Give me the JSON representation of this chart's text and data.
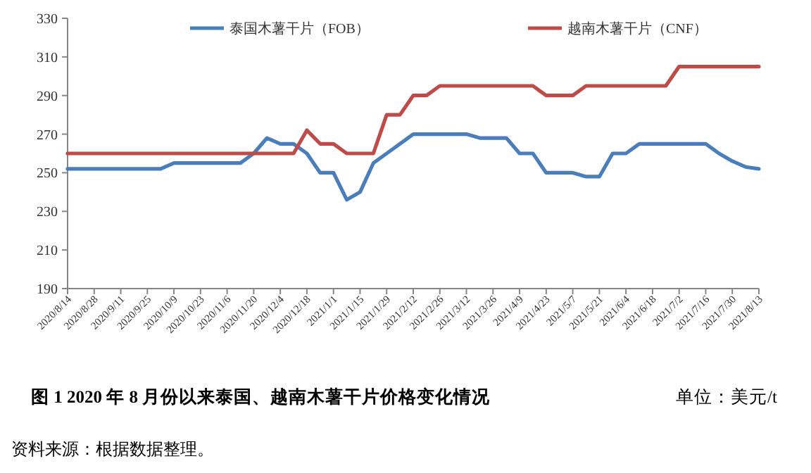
{
  "chart_data": {
    "type": "line",
    "title": "图 1 2020 年 8 月份以来泰国、越南木薯干片价格变化情况",
    "annotations": [
      "单位：美元/t",
      "资料来源：根据数据整理。"
    ],
    "categories": [
      "2020/8/14",
      null,
      "2020/8/28",
      null,
      "2020/9/11",
      null,
      "2020/9/25",
      null,
      "2020/10/9",
      null,
      "2020/10/23",
      null,
      "2020/11/6",
      null,
      "2020/11/20",
      null,
      "2020/12/4",
      null,
      "2020/12/18",
      null,
      "2021/1/1",
      null,
      "2021/1/15",
      null,
      "2021/1/29",
      null,
      "2021/2/12",
      null,
      "2021/2/26",
      null,
      "2021/3/12",
      null,
      "2021/3/26",
      null,
      "2021/4/9",
      null,
      "2021/4/23",
      null,
      "2021/5/7",
      null,
      "2021/5/21",
      null,
      "2021/6/4",
      null,
      "2021/6/18",
      null,
      "2021/7/2",
      null,
      "2021/7/16",
      null,
      "2021/7/30",
      null,
      "2021/8/13"
    ],
    "series": [
      {
        "name": "泰国木薯干片（FOB）",
        "color": "#4a7ebb",
        "values": [
          252,
          252,
          252,
          252,
          252,
          252,
          252,
          252,
          255,
          255,
          255,
          255,
          255,
          255,
          260,
          268,
          265,
          265,
          260,
          250,
          250,
          236,
          240,
          255,
          260,
          265,
          270,
          270,
          270,
          270,
          270,
          268,
          268,
          268,
          260,
          260,
          250,
          250,
          250,
          248,
          248,
          260,
          260,
          265,
          265,
          265,
          265,
          265,
          265,
          260,
          256,
          253,
          252
        ]
      },
      {
        "name": "越南木薯干片（CNF）",
        "color": "#be4b48",
        "values": [
          260,
          260,
          260,
          260,
          260,
          260,
          260,
          260,
          260,
          260,
          260,
          260,
          260,
          260,
          260,
          260,
          260,
          260,
          272,
          265,
          265,
          260,
          260,
          260,
          280,
          280,
          290,
          290,
          295,
          295,
          295,
          295,
          295,
          295,
          295,
          295,
          290,
          290,
          290,
          295,
          295,
          295,
          295,
          295,
          295,
          295,
          305,
          305,
          305,
          305,
          305,
          305,
          305
        ]
      }
    ],
    "ylim": [
      190,
      330
    ],
    "yticks": [
      190,
      210,
      230,
      250,
      270,
      290,
      310,
      330
    ],
    "legend": "top",
    "grid": false,
    "marker": "none",
    "line_style": "solid"
  }
}
